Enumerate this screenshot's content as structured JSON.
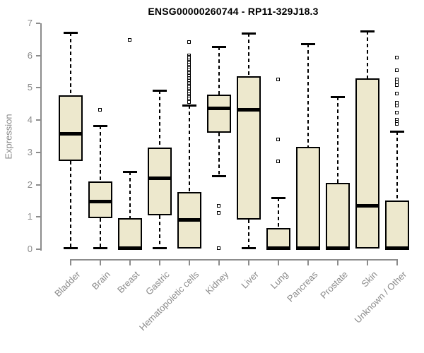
{
  "title": "ENSG00000260744 - RP11-329J18.3",
  "colors": {
    "background": "#ffffff",
    "box_fill": "#ede8cd",
    "box_border": "#000000",
    "median": "#000000",
    "whisker": "#000000",
    "axis": "#8c8c8c",
    "axis_text": "#8a8a8a",
    "title_text": "#000000"
  },
  "chart_data": {
    "type": "boxplot",
    "title": "ENSG00000260744 - RP11-329J18.3",
    "xlabel": "",
    "ylabel": "Expression",
    "ylim": [
      0,
      7
    ],
    "yticks": [
      0,
      1,
      2,
      3,
      4,
      5,
      6,
      7
    ],
    "grid": false,
    "legend": false,
    "categories": [
      "Bladder",
      "Brain",
      "Breast",
      "Gastric",
      "Hematopoietic cells",
      "Kidney",
      "Liver",
      "Lung",
      "Pancreas",
      "Prostate",
      "Skin",
      "Unknown / Other"
    ],
    "series": [
      {
        "category": "Bladder",
        "whisker_low": 0.05,
        "q1": 2.73,
        "median": 3.58,
        "q3": 4.77,
        "whisker_high": 6.72,
        "outliers": []
      },
      {
        "category": "Brain",
        "whisker_low": 0.05,
        "q1": 0.97,
        "median": 1.48,
        "q3": 2.1,
        "whisker_high": 3.82,
        "outliers": [
          4.3
        ]
      },
      {
        "category": "Breast",
        "whisker_low": 0.0,
        "q1": 0.0,
        "median": 0.05,
        "q3": 0.97,
        "whisker_high": 2.4,
        "outliers": [
          6.48
        ]
      },
      {
        "category": "Gastric",
        "whisker_low": 0.05,
        "q1": 1.05,
        "median": 2.2,
        "q3": 3.15,
        "whisker_high": 4.92,
        "outliers": []
      },
      {
        "category": "Hematopoietic cells",
        "whisker_low": 0.02,
        "q1": 0.02,
        "median": 0.92,
        "q3": 1.78,
        "whisker_high": 4.47,
        "outliers": [
          6.4,
          6.0,
          5.95,
          5.9,
          5.85,
          5.8,
          5.75,
          5.7,
          5.65,
          5.6,
          5.55,
          5.5,
          5.45,
          5.4,
          5.35,
          5.3,
          5.25,
          5.2,
          5.15,
          5.1,
          5.05,
          5.0,
          4.95,
          4.9,
          4.85,
          4.8,
          4.75,
          4.7,
          4.65,
          4.6,
          4.55
        ]
      },
      {
        "category": "Kidney",
        "whisker_low": 2.28,
        "q1": 3.6,
        "median": 4.38,
        "q3": 4.78,
        "whisker_high": 6.28,
        "outliers": [
          1.33,
          1.12,
          0.02
        ]
      },
      {
        "category": "Liver",
        "whisker_low": 0.05,
        "q1": 0.92,
        "median": 4.34,
        "q3": 5.37,
        "whisker_high": 6.7,
        "outliers": []
      },
      {
        "category": "Lung",
        "whisker_low": 0.0,
        "q1": 0.0,
        "median": 0.05,
        "q3": 0.65,
        "whisker_high": 1.6,
        "outliers": [
          5.24,
          3.4,
          2.72
        ]
      },
      {
        "category": "Pancreas",
        "whisker_low": 0.0,
        "q1": 0.0,
        "median": 0.05,
        "q3": 3.18,
        "whisker_high": 6.37,
        "outliers": []
      },
      {
        "category": "Prostate",
        "whisker_low": 0.0,
        "q1": 0.0,
        "median": 0.05,
        "q3": 2.06,
        "whisker_high": 4.72,
        "outliers": []
      },
      {
        "category": "Skin",
        "whisker_low": 0.02,
        "q1": 0.02,
        "median": 1.35,
        "q3": 5.29,
        "whisker_high": 6.76,
        "outliers": []
      },
      {
        "category": "Unknown / Other",
        "whisker_low": 0.0,
        "q1": 0.0,
        "median": 0.05,
        "q3": 1.5,
        "whisker_high": 3.65,
        "outliers": [
          5.93,
          5.54,
          5.25,
          5.16,
          5.08,
          4.81,
          4.52,
          4.45,
          4.22,
          4.0,
          3.93,
          3.87
        ]
      }
    ]
  }
}
